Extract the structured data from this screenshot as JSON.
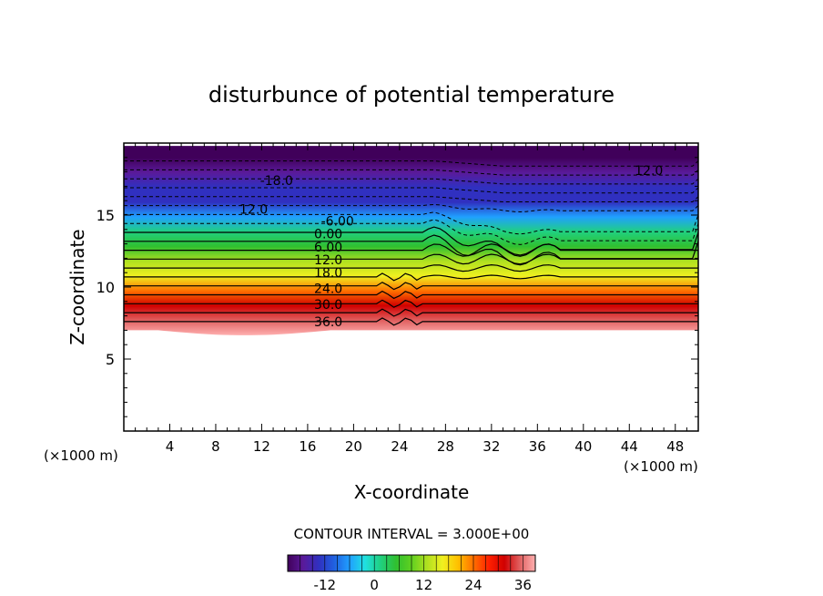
{
  "chart_data": {
    "type": "heatmap",
    "title": "disturbunce of potential temperature",
    "xlabel": "X-coordinate",
    "ylabel": "Z-coordinate",
    "x_unit_left": "(×1000 m)",
    "x_unit_right": "(×1000 m)",
    "xlim": [
      0,
      50
    ],
    "ylim": [
      0,
      20
    ],
    "x_ticks": [
      4,
      8,
      12,
      16,
      20,
      24,
      28,
      32,
      36,
      40,
      44,
      48
    ],
    "x_tick_labels": [
      "4",
      "8",
      "12",
      "16",
      "20",
      "24",
      "28",
      "32",
      "36",
      "40",
      "44",
      "48"
    ],
    "y_ticks": [
      5,
      10,
      15
    ],
    "y_tick_labels": [
      "5",
      "10",
      "15"
    ],
    "contour_interval_text": "CONTOUR INTERVAL = 3.000E+00",
    "contour_labels": [
      {
        "text": "-18.0",
        "x": 13.3,
        "z": 17.4
      },
      {
        "text": "12.0",
        "x": 11.3,
        "z": 15.4
      },
      {
        "text": "12.0",
        "x": 45.7,
        "z": 18.1
      },
      {
        "text": "-6.00",
        "x": 18.6,
        "z": 14.6
      },
      {
        "text": "0.00",
        "x": 17.8,
        "z": 13.7
      },
      {
        "text": "6.00",
        "x": 17.8,
        "z": 12.8
      },
      {
        "text": "12.0",
        "x": 17.8,
        "z": 11.9
      },
      {
        "text": "18.0",
        "x": 17.8,
        "z": 11.0
      },
      {
        "text": "24.0",
        "x": 17.8,
        "z": 9.9
      },
      {
        "text": "30.0",
        "x": 17.8,
        "z": 8.8
      },
      {
        "text": "36.0",
        "x": 17.8,
        "z": 7.6
      }
    ],
    "colorbar": {
      "min": -21,
      "max": 39,
      "tick_values": [
        -12,
        0,
        12,
        24,
        36
      ],
      "tick_labels": [
        "-12",
        "0",
        "12",
        "24",
        "36"
      ]
    },
    "colormap": [
      "#40005a",
      "#5a1a9a",
      "#3030c0",
      "#2060e0",
      "#20a0ff",
      "#20e0e0",
      "#20d080",
      "#30c030",
      "#60d020",
      "#b0e020",
      "#f0f020",
      "#ffc000",
      "#ff7000",
      "#ff2000",
      "#d00000",
      "#e06060",
      "#ffb0b0"
    ],
    "field_description_rows": [
      {
        "z": 7.0,
        "value": 39
      },
      {
        "z": 8.0,
        "value": 36
      },
      {
        "z": 9.0,
        "value": 30
      },
      {
        "z": 10.0,
        "value": 24
      },
      {
        "z": 11.0,
        "value": 18
      },
      {
        "z": 12.0,
        "value": 12
      },
      {
        "z": 13.0,
        "value": 6
      },
      {
        "z": 14.0,
        "value": 0
      },
      {
        "z": 15.0,
        "value": -6
      },
      {
        "z": 16.0,
        "value": -12
      },
      {
        "z": 17.0,
        "value": -15
      },
      {
        "z": 18.0,
        "value": -18
      },
      {
        "z": 19.0,
        "value": -21
      },
      {
        "z": 19.8,
        "value": -21
      }
    ]
  }
}
